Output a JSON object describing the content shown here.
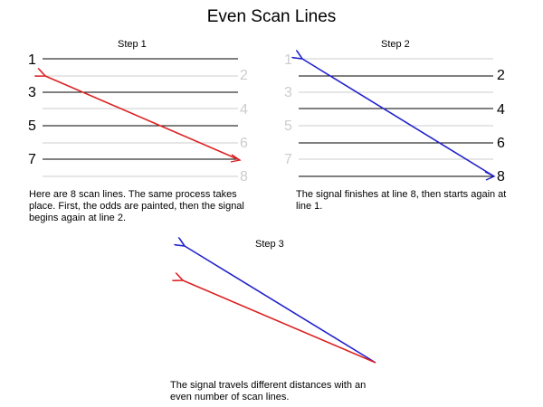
{
  "title": "Even Scan Lines",
  "colors": {
    "red_signal": "#dd2222",
    "blue_signal": "#2222cc",
    "faded": "#cccccc",
    "line": "#000000"
  },
  "step1": {
    "label": "Step 1",
    "numbers": [
      "1",
      "2",
      "3",
      "4",
      "5",
      "6",
      "7",
      "8"
    ],
    "caption": "Here are 8 scan lines.  The same process takes place.  First, the odds are painted, then the signal begins again at line 2."
  },
  "step2": {
    "label": "Step 2",
    "numbers": [
      "1",
      "2",
      "3",
      "4",
      "5",
      "6",
      "7",
      "8"
    ],
    "caption": "The signal finishes at line 8, then starts again at line 1."
  },
  "step3": {
    "label": "Step 3",
    "caption": "The signal travels different distances with an even number of scan lines."
  }
}
